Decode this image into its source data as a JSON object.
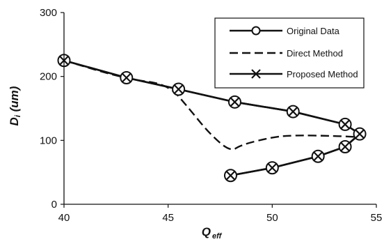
{
  "chart_data": {
    "type": "line",
    "xlabel": "Q",
    "xlabel_sub": "eff",
    "ylabel": "D",
    "ylabel_sub": "i",
    "ylabel_unit": " (um)",
    "xlim": [
      40,
      55
    ],
    "ylim": [
      0,
      300
    ],
    "xticks": [
      40,
      45,
      50,
      55
    ],
    "yticks": [
      0,
      100,
      200,
      300
    ],
    "grid": false,
    "legend_position": "top-right",
    "series": [
      {
        "name": "Original Data",
        "style": "solid",
        "marker": "circle",
        "x": [
          40,
          43,
          45.5,
          48.2,
          51,
          53.5,
          54.2,
          53.5,
          52.2,
          50,
          48
        ],
        "y": [
          225,
          198,
          180,
          160,
          145,
          125,
          110,
          90,
          75,
          57,
          45
        ]
      },
      {
        "name": "Direct Method",
        "style": "dashed",
        "marker": "none",
        "x": [
          40,
          43,
          45,
          46,
          47,
          48,
          48.5,
          50,
          51,
          53,
          54.2
        ],
        "y": [
          225,
          196,
          188,
          150,
          110,
          82,
          93,
          105,
          108,
          107,
          105
        ]
      },
      {
        "name": "Proposed Method",
        "style": "solid",
        "marker": "x",
        "x": [
          40,
          43,
          45.5,
          48.2,
          51,
          53.5,
          54.2,
          53.5,
          52.2,
          50,
          48
        ],
        "y": [
          225,
          198,
          180,
          160,
          145,
          125,
          110,
          90,
          75,
          57,
          45
        ]
      }
    ]
  }
}
